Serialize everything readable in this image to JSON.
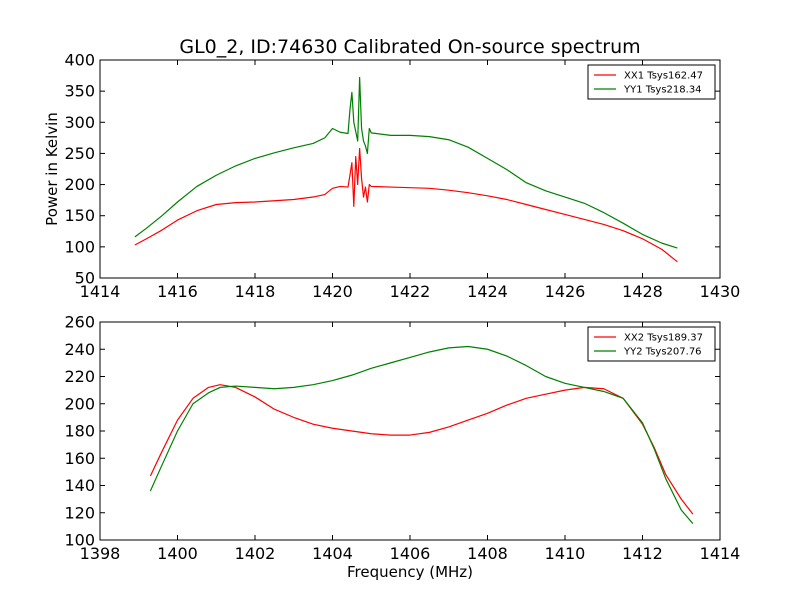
{
  "figure_title": "GL0_2, ID:74630 Calibrated On-source spectrum",
  "colors": {
    "xx": "#ff0000",
    "yy": "#008000"
  },
  "chart_data": [
    {
      "type": "line",
      "ylabel": "Power in Kelvin",
      "xlabel": "",
      "xlim": [
        1414,
        1430
      ],
      "ylim": [
        50,
        400
      ],
      "xticks": [
        1414,
        1416,
        1418,
        1420,
        1422,
        1424,
        1426,
        1428,
        1430
      ],
      "yticks": [
        50,
        100,
        150,
        200,
        250,
        300,
        350,
        400
      ],
      "legend_position": "top-right",
      "series": [
        {
          "name": "XX1 Tsys162.47",
          "color": "#ff0000",
          "x": [
            1414.9,
            1415.2,
            1415.6,
            1416.0,
            1416.5,
            1417.0,
            1417.5,
            1418.0,
            1418.5,
            1419.0,
            1419.5,
            1419.8,
            1420.0,
            1420.2,
            1420.4,
            1420.45,
            1420.5,
            1420.55,
            1420.6,
            1420.65,
            1420.7,
            1420.75,
            1420.8,
            1420.85,
            1420.9,
            1420.95,
            1421.0,
            1421.5,
            1422.0,
            1422.5,
            1423.0,
            1423.5,
            1424.0,
            1424.5,
            1425.0,
            1425.5,
            1426.0,
            1426.5,
            1427.0,
            1427.5,
            1428.0,
            1428.5,
            1428.9
          ],
          "y": [
            103,
            113,
            127,
            143,
            158,
            168,
            171,
            172,
            174,
            176,
            180,
            184,
            194,
            197,
            196,
            215,
            235,
            165,
            245,
            200,
            258,
            210,
            180,
            196,
            172,
            200,
            197,
            196,
            195,
            194,
            191,
            187,
            182,
            176,
            168,
            160,
            152,
            144,
            136,
            126,
            113,
            96,
            76
          ]
        },
        {
          "name": "YY1 Tsys218.34",
          "color": "#008000",
          "x": [
            1414.9,
            1415.2,
            1415.6,
            1416.0,
            1416.5,
            1417.0,
            1417.5,
            1418.0,
            1418.5,
            1419.0,
            1419.5,
            1419.8,
            1420.0,
            1420.2,
            1420.4,
            1420.45,
            1420.5,
            1420.55,
            1420.6,
            1420.65,
            1420.7,
            1420.75,
            1420.8,
            1420.85,
            1420.9,
            1420.95,
            1421.0,
            1421.5,
            1422.0,
            1422.5,
            1423.0,
            1423.5,
            1424.0,
            1424.5,
            1425.0,
            1425.5,
            1426.0,
            1426.5,
            1427.0,
            1427.5,
            1428.0,
            1428.5,
            1428.9
          ],
          "y": [
            116,
            130,
            150,
            172,
            197,
            215,
            230,
            242,
            251,
            259,
            266,
            275,
            290,
            284,
            282,
            320,
            348,
            300,
            285,
            270,
            372,
            290,
            270,
            262,
            250,
            290,
            283,
            279,
            279,
            277,
            272,
            260,
            242,
            224,
            203,
            190,
            180,
            170,
            155,
            138,
            120,
            106,
            98
          ]
        }
      ]
    },
    {
      "type": "line",
      "xlabel": "Frequency (MHz)",
      "ylabel": "",
      "xlim": [
        1398,
        1414
      ],
      "ylim": [
        100,
        260
      ],
      "xticks": [
        1398,
        1400,
        1402,
        1404,
        1406,
        1408,
        1410,
        1412,
        1414
      ],
      "yticks": [
        100,
        120,
        140,
        160,
        180,
        200,
        220,
        240,
        260
      ],
      "legend_position": "top-right",
      "series": [
        {
          "name": "XX2 Tsys189.37",
          "color": "#ff0000",
          "x": [
            1399.3,
            1399.6,
            1400.0,
            1400.4,
            1400.8,
            1401.1,
            1401.5,
            1402.0,
            1402.5,
            1403.0,
            1403.5,
            1404.0,
            1404.5,
            1405.0,
            1405.5,
            1406.0,
            1406.5,
            1407.0,
            1407.5,
            1408.0,
            1408.5,
            1409.0,
            1409.5,
            1410.0,
            1410.5,
            1411.0,
            1411.5,
            1412.0,
            1412.3,
            1412.6,
            1413.0,
            1413.3
          ],
          "y": [
            147,
            165,
            188,
            204,
            212,
            214,
            212,
            205,
            196,
            190,
            185,
            182,
            180,
            178,
            177,
            177,
            179,
            183,
            188,
            193,
            199,
            204,
            207,
            210,
            212,
            211,
            204,
            185,
            168,
            148,
            130,
            119
          ]
        },
        {
          "name": "YY2 Tsys207.76",
          "color": "#008000",
          "x": [
            1399.3,
            1399.6,
            1400.0,
            1400.4,
            1400.8,
            1401.1,
            1401.5,
            1402.0,
            1402.5,
            1403.0,
            1403.5,
            1404.0,
            1404.5,
            1405.0,
            1405.5,
            1406.0,
            1406.5,
            1407.0,
            1407.5,
            1408.0,
            1408.5,
            1409.0,
            1409.5,
            1410.0,
            1410.5,
            1411.0,
            1411.5,
            1412.0,
            1412.3,
            1412.6,
            1413.0,
            1413.3
          ],
          "y": [
            136,
            155,
            180,
            200,
            208,
            212,
            213,
            212,
            211,
            212,
            214,
            217,
            221,
            226,
            230,
            234,
            238,
            241,
            242,
            240,
            235,
            228,
            220,
            215,
            212,
            209,
            204,
            186,
            167,
            145,
            122,
            112
          ]
        }
      ]
    }
  ]
}
